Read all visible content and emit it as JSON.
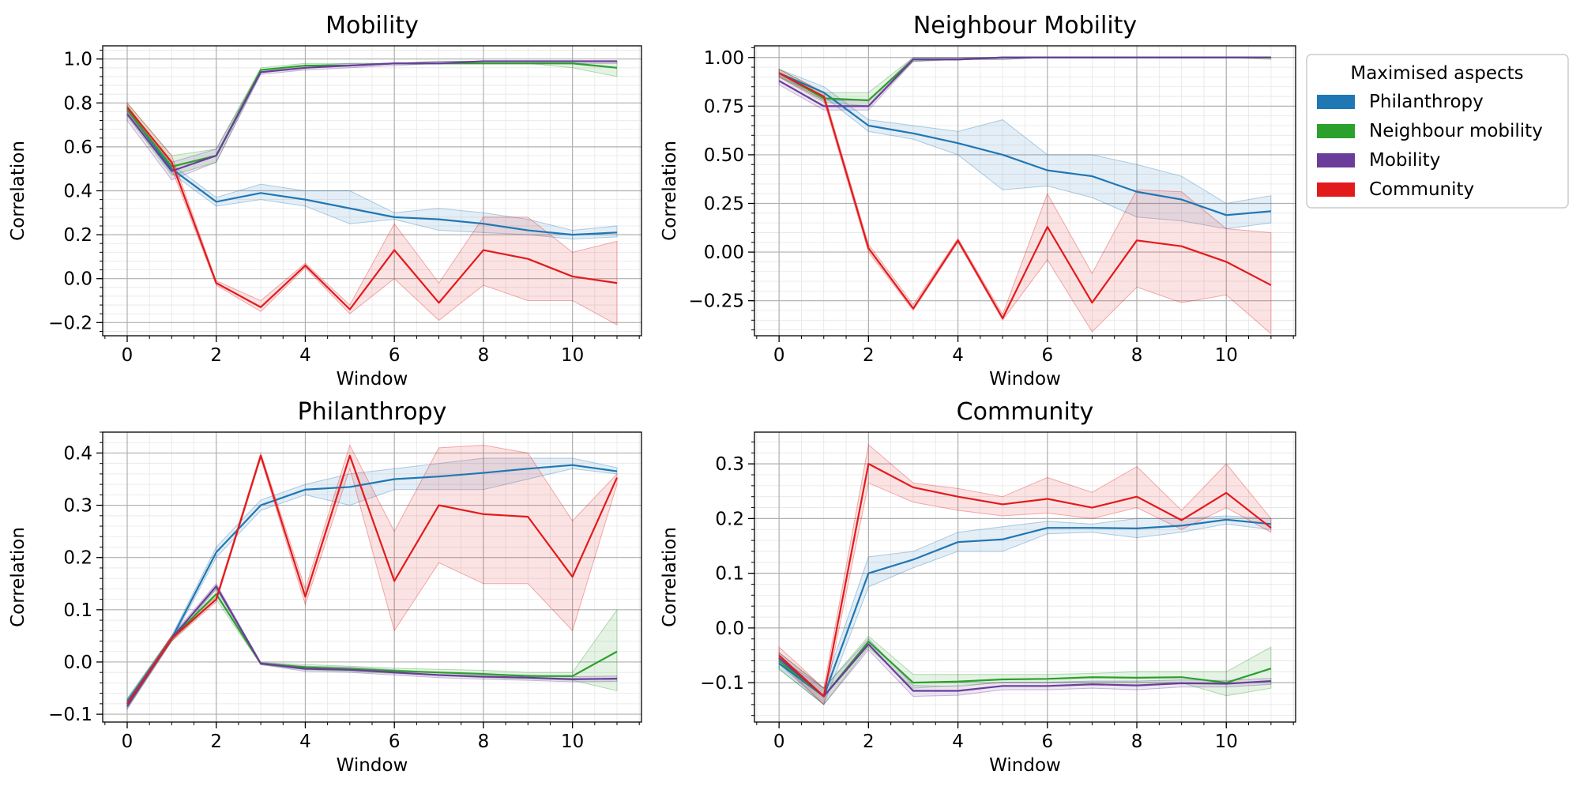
{
  "legend": {
    "title": "Maximised aspects",
    "items": [
      {
        "key": "philanthropy",
        "label": "Philanthropy",
        "color": "#1f77b4"
      },
      {
        "key": "neighbour",
        "label": "Neighbour mobility",
        "color": "#2ca02c"
      },
      {
        "key": "mobility",
        "label": "Mobility",
        "color": "#6a3d9a"
      },
      {
        "key": "community",
        "label": "Community",
        "color": "#e31a1c"
      }
    ]
  },
  "chart_data": [
    {
      "type": "line",
      "title": "Mobility",
      "xlabel": "Window",
      "ylabel": "Correlation",
      "xlim": [
        -0.55,
        11.55
      ],
      "ylim": [
        -0.26,
        1.06
      ],
      "xticks": [
        0,
        2,
        4,
        6,
        8,
        10
      ],
      "xtick_labels": [
        "0",
        "2",
        "4",
        "6",
        "8",
        "10"
      ],
      "yticks": [
        -0.2,
        0.0,
        0.2,
        0.4,
        0.6,
        0.8,
        1.0
      ],
      "ytick_labels": [
        "−0.2",
        "0.0",
        "0.2",
        "0.4",
        "0.6",
        "0.8",
        "1.0"
      ],
      "x": [
        0,
        1,
        2,
        3,
        4,
        5,
        6,
        7,
        8,
        9,
        10,
        11
      ],
      "series": [
        {
          "key": "philanthropy",
          "name": "Philanthropy",
          "values": [
            0.77,
            0.5,
            0.35,
            0.39,
            0.36,
            0.32,
            0.28,
            0.27,
            0.25,
            0.22,
            0.2,
            0.21
          ],
          "lower": [
            0.75,
            0.48,
            0.33,
            0.36,
            0.33,
            0.25,
            0.27,
            0.22,
            0.21,
            0.2,
            0.18,
            0.19
          ],
          "upper": [
            0.79,
            0.52,
            0.37,
            0.43,
            0.4,
            0.4,
            0.3,
            0.32,
            0.3,
            0.27,
            0.22,
            0.24
          ]
        },
        {
          "key": "neighbour",
          "name": "Neighbour mobility",
          "values": [
            0.77,
            0.51,
            0.56,
            0.95,
            0.97,
            0.97,
            0.98,
            0.98,
            0.98,
            0.98,
            0.98,
            0.96
          ],
          "lower": [
            0.74,
            0.47,
            0.53,
            0.94,
            0.96,
            0.97,
            0.98,
            0.98,
            0.98,
            0.98,
            0.96,
            0.92
          ],
          "upper": [
            0.8,
            0.56,
            0.59,
            0.96,
            0.98,
            0.98,
            0.98,
            0.99,
            0.99,
            0.99,
            0.99,
            0.99
          ]
        },
        {
          "key": "mobility",
          "name": "Mobility",
          "values": [
            0.75,
            0.49,
            0.56,
            0.94,
            0.96,
            0.97,
            0.98,
            0.98,
            0.99,
            0.99,
            0.99,
            0.99
          ],
          "lower": [
            0.72,
            0.45,
            0.53,
            0.93,
            0.95,
            0.96,
            0.97,
            0.98,
            0.98,
            0.98,
            0.98,
            0.98
          ],
          "upper": [
            0.78,
            0.53,
            0.59,
            0.95,
            0.97,
            0.98,
            0.98,
            0.99,
            0.99,
            0.99,
            0.99,
            0.99
          ]
        },
        {
          "key": "community",
          "name": "Community",
          "values": [
            0.78,
            0.53,
            -0.02,
            -0.13,
            0.06,
            -0.14,
            0.13,
            -0.11,
            0.13,
            0.09,
            0.01,
            -0.02
          ],
          "lower": [
            0.76,
            0.5,
            -0.03,
            -0.15,
            0.05,
            -0.16,
            0.0,
            -0.19,
            -0.03,
            -0.1,
            -0.1,
            -0.21
          ],
          "upper": [
            0.8,
            0.56,
            -0.01,
            -0.1,
            0.07,
            -0.12,
            0.25,
            -0.02,
            0.28,
            0.28,
            0.12,
            0.17
          ]
        }
      ]
    },
    {
      "type": "line",
      "title": "Neighbour Mobility",
      "xlabel": "Window",
      "ylabel": "Correlation",
      "xlim": [
        -0.55,
        11.55
      ],
      "ylim": [
        -0.43,
        1.06
      ],
      "xticks": [
        0,
        2,
        4,
        6,
        8,
        10
      ],
      "xtick_labels": [
        "0",
        "2",
        "4",
        "6",
        "8",
        "10"
      ],
      "yticks": [
        -0.25,
        0.0,
        0.25,
        0.5,
        0.75,
        1.0
      ],
      "ytick_labels": [
        "−0.25",
        "0.00",
        "0.25",
        "0.50",
        "0.75",
        "1.00"
      ],
      "x": [
        0,
        1,
        2,
        3,
        4,
        5,
        6,
        7,
        8,
        9,
        10,
        11
      ],
      "series": [
        {
          "key": "philanthropy",
          "name": "Philanthropy",
          "values": [
            0.92,
            0.82,
            0.65,
            0.61,
            0.56,
            0.5,
            0.42,
            0.39,
            0.31,
            0.27,
            0.19,
            0.21
          ],
          "lower": [
            0.9,
            0.8,
            0.62,
            0.58,
            0.5,
            0.32,
            0.34,
            0.28,
            0.18,
            0.16,
            0.12,
            0.15
          ],
          "upper": [
            0.94,
            0.85,
            0.68,
            0.65,
            0.62,
            0.68,
            0.5,
            0.5,
            0.45,
            0.39,
            0.25,
            0.29
          ]
        },
        {
          "key": "neighbour",
          "name": "Neighbour mobility",
          "values": [
            0.92,
            0.79,
            0.78,
            0.99,
            0.99,
            1.0,
            1.0,
            1.0,
            1.0,
            1.0,
            1.0,
            1.0
          ],
          "lower": [
            0.9,
            0.77,
            0.75,
            0.98,
            0.99,
            0.99,
            1.0,
            1.0,
            1.0,
            1.0,
            1.0,
            0.99
          ],
          "upper": [
            0.94,
            0.82,
            0.82,
            1.0,
            1.0,
            1.0,
            1.0,
            1.0,
            1.0,
            1.0,
            1.0,
            1.0
          ]
        },
        {
          "key": "mobility",
          "name": "Mobility",
          "values": [
            0.88,
            0.75,
            0.75,
            0.99,
            0.99,
            1.0,
            1.0,
            1.0,
            1.0,
            1.0,
            1.0,
            1.0
          ],
          "lower": [
            0.86,
            0.73,
            0.73,
            0.98,
            0.99,
            0.99,
            1.0,
            1.0,
            1.0,
            1.0,
            1.0,
            1.0
          ],
          "upper": [
            0.91,
            0.78,
            0.78,
            1.0,
            1.0,
            1.0,
            1.0,
            1.0,
            1.0,
            1.0,
            1.0,
            1.0
          ]
        },
        {
          "key": "community",
          "name": "Community",
          "values": [
            0.92,
            0.8,
            0.02,
            -0.29,
            0.06,
            -0.34,
            0.13,
            -0.26,
            0.06,
            0.03,
            -0.05,
            -0.17
          ],
          "lower": [
            0.9,
            0.78,
            0.0,
            -0.3,
            0.05,
            -0.35,
            -0.04,
            -0.41,
            -0.18,
            -0.26,
            -0.22,
            -0.42
          ],
          "upper": [
            0.94,
            0.82,
            0.04,
            -0.27,
            0.07,
            -0.32,
            0.3,
            -0.11,
            0.32,
            0.31,
            0.12,
            0.1
          ]
        }
      ]
    },
    {
      "type": "line",
      "title": "Philanthropy",
      "xlabel": "Window",
      "ylabel": "Correlation",
      "xlim": [
        -0.55,
        11.55
      ],
      "ylim": [
        -0.115,
        0.44
      ],
      "xticks": [
        0,
        2,
        4,
        6,
        8,
        10
      ],
      "xtick_labels": [
        "0",
        "2",
        "4",
        "6",
        "8",
        "10"
      ],
      "yticks": [
        -0.1,
        0.0,
        0.1,
        0.2,
        0.3,
        0.4
      ],
      "ytick_labels": [
        "−0.1",
        "0.0",
        "0.1",
        "0.2",
        "0.3",
        "0.4"
      ],
      "x": [
        0,
        1,
        2,
        3,
        4,
        5,
        6,
        7,
        8,
        9,
        10,
        11
      ],
      "series": [
        {
          "key": "philanthropy",
          "name": "Philanthropy",
          "values": [
            -0.075,
            0.045,
            0.21,
            0.3,
            0.33,
            0.335,
            0.35,
            0.355,
            0.362,
            0.37,
            0.377,
            0.365
          ],
          "lower": [
            -0.08,
            0.04,
            0.2,
            0.29,
            0.32,
            0.3,
            0.33,
            0.33,
            0.33,
            0.35,
            0.37,
            0.36
          ],
          "upper": [
            -0.07,
            0.05,
            0.22,
            0.31,
            0.34,
            0.36,
            0.37,
            0.38,
            0.39,
            0.39,
            0.39,
            0.372
          ]
        },
        {
          "key": "neighbour",
          "name": "Neighbour mobility",
          "values": [
            -0.08,
            0.045,
            0.13,
            -0.003,
            -0.01,
            -0.013,
            -0.017,
            -0.02,
            -0.023,
            -0.027,
            -0.027,
            0.02
          ],
          "lower": [
            -0.09,
            0.04,
            0.12,
            -0.005,
            -0.015,
            -0.018,
            -0.022,
            -0.026,
            -0.03,
            -0.032,
            -0.035,
            -0.055
          ],
          "upper": [
            -0.07,
            0.05,
            0.14,
            -0.001,
            -0.005,
            -0.008,
            -0.012,
            -0.014,
            -0.016,
            -0.02,
            -0.02,
            0.1
          ]
        },
        {
          "key": "mobility",
          "name": "Mobility",
          "values": [
            -0.085,
            0.045,
            0.145,
            -0.003,
            -0.013,
            -0.015,
            -0.02,
            -0.025,
            -0.028,
            -0.03,
            -0.033,
            -0.032
          ],
          "lower": [
            -0.09,
            0.04,
            0.14,
            -0.005,
            -0.018,
            -0.02,
            -0.025,
            -0.03,
            -0.033,
            -0.035,
            -0.038,
            -0.037
          ],
          "upper": [
            -0.08,
            0.05,
            0.15,
            -0.001,
            -0.008,
            -0.01,
            -0.015,
            -0.02,
            -0.023,
            -0.025,
            -0.028,
            -0.027
          ]
        },
        {
          "key": "community",
          "name": "Community",
          "values": [
            -0.08,
            0.045,
            0.12,
            0.395,
            0.125,
            0.395,
            0.155,
            0.3,
            0.283,
            0.278,
            0.163,
            0.353
          ],
          "lower": [
            -0.085,
            0.04,
            0.115,
            0.39,
            0.11,
            0.37,
            0.06,
            0.19,
            0.15,
            0.15,
            0.06,
            0.34
          ],
          "upper": [
            -0.075,
            0.05,
            0.125,
            0.4,
            0.14,
            0.415,
            0.25,
            0.41,
            0.415,
            0.4,
            0.27,
            0.36
          ]
        }
      ]
    },
    {
      "type": "line",
      "title": "Community",
      "xlabel": "Window",
      "ylabel": "Correlation",
      "xlim": [
        -0.55,
        11.55
      ],
      "ylim": [
        -0.172,
        0.358
      ],
      "xticks": [
        0,
        2,
        4,
        6,
        8,
        10
      ],
      "xtick_labels": [
        "0",
        "2",
        "4",
        "6",
        "8",
        "10"
      ],
      "yticks": [
        -0.1,
        0.0,
        0.1,
        0.2,
        0.3
      ],
      "ytick_labels": [
        "−0.1",
        "0.0",
        "0.1",
        "0.2",
        "0.3"
      ],
      "x": [
        0,
        1,
        2,
        3,
        4,
        5,
        6,
        7,
        8,
        9,
        10,
        11
      ],
      "series": [
        {
          "key": "philanthropy",
          "name": "Philanthropy",
          "values": [
            -0.065,
            -0.125,
            0.1,
            0.125,
            0.157,
            0.162,
            0.183,
            0.183,
            0.182,
            0.187,
            0.198,
            0.19
          ],
          "lower": [
            -0.075,
            -0.14,
            0.075,
            0.11,
            0.14,
            0.14,
            0.172,
            0.175,
            0.165,
            0.175,
            0.19,
            0.18
          ],
          "upper": [
            -0.055,
            -0.11,
            0.13,
            0.14,
            0.175,
            0.185,
            0.195,
            0.19,
            0.2,
            0.2,
            0.205,
            0.2
          ]
        },
        {
          "key": "neighbour",
          "name": "Neighbour mobility",
          "values": [
            -0.06,
            -0.125,
            -0.025,
            -0.1,
            -0.098,
            -0.094,
            -0.093,
            -0.09,
            -0.091,
            -0.09,
            -0.1,
            -0.074
          ],
          "lower": [
            -0.075,
            -0.14,
            -0.035,
            -0.11,
            -0.105,
            -0.1,
            -0.1,
            -0.1,
            -0.1,
            -0.1,
            -0.124,
            -0.11
          ],
          "upper": [
            -0.045,
            -0.11,
            -0.015,
            -0.085,
            -0.085,
            -0.085,
            -0.085,
            -0.083,
            -0.08,
            -0.08,
            -0.08,
            -0.035
          ]
        },
        {
          "key": "mobility",
          "name": "Mobility",
          "values": [
            -0.055,
            -0.125,
            -0.03,
            -0.115,
            -0.115,
            -0.106,
            -0.106,
            -0.103,
            -0.105,
            -0.101,
            -0.102,
            -0.097
          ],
          "lower": [
            -0.065,
            -0.14,
            -0.04,
            -0.125,
            -0.123,
            -0.113,
            -0.113,
            -0.11,
            -0.113,
            -0.108,
            -0.108,
            -0.103
          ],
          "upper": [
            -0.045,
            -0.11,
            -0.02,
            -0.105,
            -0.107,
            -0.099,
            -0.099,
            -0.097,
            -0.097,
            -0.095,
            -0.096,
            -0.092
          ]
        },
        {
          "key": "community",
          "name": "Community",
          "values": [
            -0.05,
            -0.125,
            0.3,
            0.257,
            0.24,
            0.226,
            0.236,
            0.22,
            0.24,
            0.197,
            0.247,
            0.183
          ],
          "lower": [
            -0.06,
            -0.14,
            0.265,
            0.23,
            0.215,
            0.205,
            0.21,
            0.2,
            0.22,
            0.18,
            0.22,
            0.175
          ],
          "upper": [
            -0.035,
            -0.11,
            0.335,
            0.265,
            0.255,
            0.24,
            0.275,
            0.248,
            0.295,
            0.215,
            0.3,
            0.2
          ]
        }
      ]
    }
  ]
}
